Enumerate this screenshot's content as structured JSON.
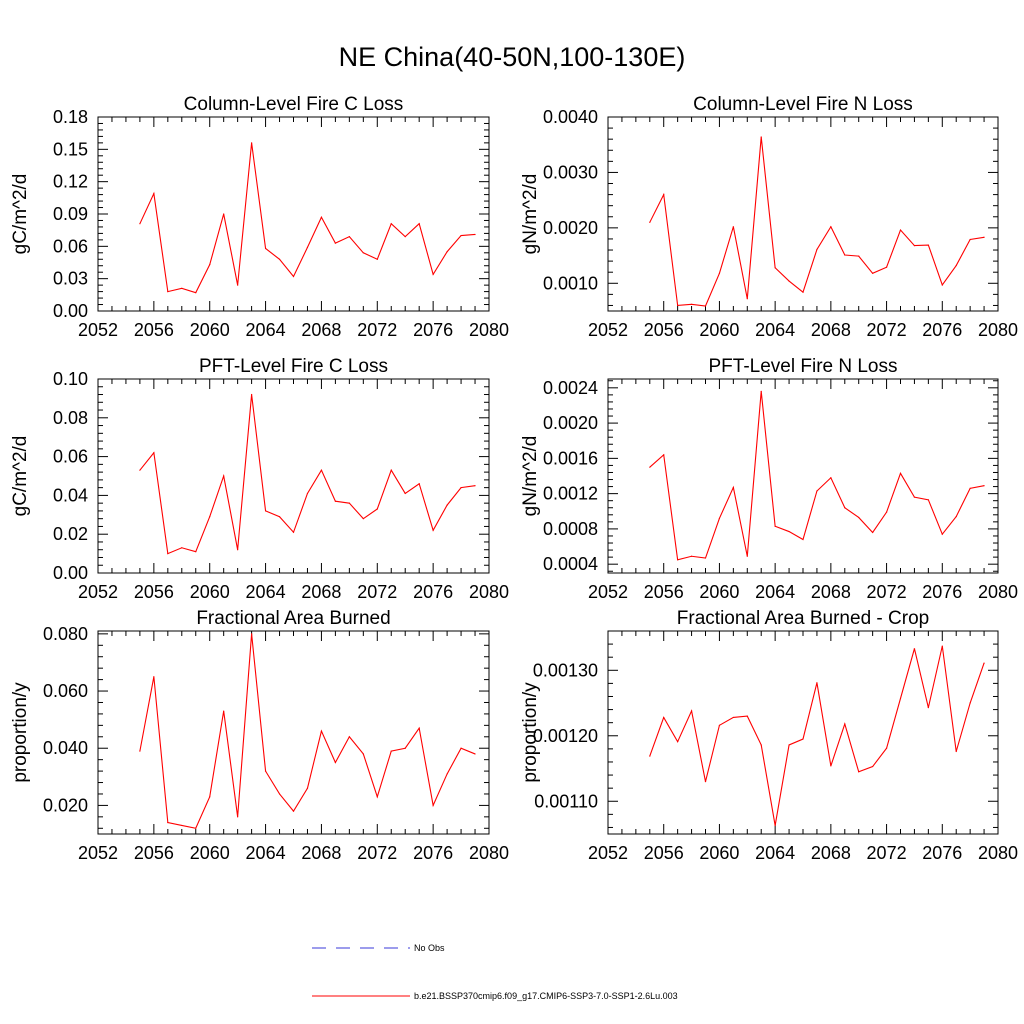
{
  "title": "NE China(40-50N,100-130E)",
  "colors": {
    "series": "#ff0000",
    "obs": "#3a3ad8",
    "axis": "#000000"
  },
  "legend": {
    "obs_label": "No Obs",
    "model_label": "b.e21.BSSP370cmip6.f09_g17.CMIP6-SSP3-7.0-SSP1-2.6Lu.003"
  },
  "chart_data": [
    {
      "type": "line",
      "title": "Column-Level Fire C Loss",
      "ylabel": "gC/m^2/d",
      "xlim": [
        2052,
        2080
      ],
      "ylim": [
        0,
        0.18
      ],
      "xticks": [
        "2052",
        "2056",
        "2060",
        "2064",
        "2068",
        "2072",
        "2076",
        "2080"
      ],
      "yticks": [
        "0.00",
        "0.03",
        "0.06",
        "0.09",
        "0.12",
        "0.15",
        "0.18"
      ],
      "x": [
        2055,
        2056,
        2057,
        2058,
        2059,
        2060,
        2061,
        2062,
        2063,
        2064,
        2065,
        2066,
        2067,
        2068,
        2069,
        2070,
        2071,
        2072,
        2073,
        2074,
        2075,
        2076,
        2077,
        2078,
        2079
      ],
      "series": [
        {
          "values": [
            0.081,
            0.109,
            0.018,
            0.021,
            0.017,
            0.043,
            0.09,
            0.024,
            0.156,
            0.058,
            0.048,
            0.032,
            0.059,
            0.087,
            0.063,
            0.069,
            0.054,
            0.048,
            0.081,
            0.069,
            0.081,
            0.034,
            0.055,
            0.07,
            0.071
          ]
        }
      ]
    },
    {
      "type": "line",
      "title": "Column-Level Fire N Loss",
      "ylabel": "gN/m^2/d",
      "xlim": [
        2052,
        2080
      ],
      "ylim": [
        0.0005,
        0.004
      ],
      "xticks": [
        "2052",
        "2056",
        "2060",
        "2064",
        "2068",
        "2072",
        "2076",
        "2080"
      ],
      "yticks": [
        "0.0010",
        "0.0020",
        "0.0030",
        "0.0040"
      ],
      "x": [
        2055,
        2056,
        2057,
        2058,
        2059,
        2060,
        2061,
        2062,
        2063,
        2064,
        2065,
        2066,
        2067,
        2068,
        2069,
        2070,
        2071,
        2072,
        2073,
        2074,
        2075,
        2076,
        2077,
        2078,
        2079
      ],
      "series": [
        {
          "values": [
            0.0021,
            0.0026,
            0.0006,
            0.00062,
            0.00059,
            0.00118,
            0.00202,
            0.00072,
            0.00364,
            0.00128,
            0.00104,
            0.00084,
            0.00161,
            0.00202,
            0.00151,
            0.00149,
            0.00118,
            0.00129,
            0.00196,
            0.00168,
            0.00169,
            0.00097,
            0.00132,
            0.00179,
            0.00183
          ]
        }
      ]
    },
    {
      "type": "line",
      "title": "PFT-Level Fire C Loss",
      "ylabel": "gC/m^2/d",
      "xlim": [
        2052,
        2080
      ],
      "ylim": [
        0,
        0.1
      ],
      "xticks": [
        "2052",
        "2056",
        "2060",
        "2064",
        "2068",
        "2072",
        "2076",
        "2080"
      ],
      "yticks": [
        "0.00",
        "0.02",
        "0.04",
        "0.06",
        "0.08",
        "0.10"
      ],
      "x": [
        2055,
        2056,
        2057,
        2058,
        2059,
        2060,
        2061,
        2062,
        2063,
        2064,
        2065,
        2066,
        2067,
        2068,
        2069,
        2070,
        2071,
        2072,
        2073,
        2074,
        2075,
        2076,
        2077,
        2078,
        2079
      ],
      "series": [
        {
          "values": [
            0.053,
            0.062,
            0.01,
            0.013,
            0.011,
            0.029,
            0.05,
            0.012,
            0.092,
            0.032,
            0.029,
            0.021,
            0.041,
            0.053,
            0.037,
            0.036,
            0.028,
            0.033,
            0.053,
            0.041,
            0.046,
            0.022,
            0.035,
            0.044,
            0.045
          ]
        }
      ]
    },
    {
      "type": "line",
      "title": "PFT-Level Fire N Loss",
      "ylabel": "gN/m^2/d",
      "xlim": [
        2052,
        2080
      ],
      "ylim": [
        0.0003,
        0.0025
      ],
      "xticks": [
        "2052",
        "2056",
        "2060",
        "2064",
        "2068",
        "2072",
        "2076",
        "2080"
      ],
      "yticks": [
        "0.0004",
        "0.0008",
        "0.0012",
        "0.0016",
        "0.0020",
        "0.0024"
      ],
      "x": [
        2055,
        2056,
        2057,
        2058,
        2059,
        2060,
        2061,
        2062,
        2063,
        2064,
        2065,
        2066,
        2067,
        2068,
        2069,
        2070,
        2071,
        2072,
        2073,
        2074,
        2075,
        2076,
        2077,
        2078,
        2079
      ],
      "series": [
        {
          "values": [
            0.0015,
            0.00164,
            0.00045,
            0.00049,
            0.00047,
            0.00092,
            0.00127,
            0.00049,
            0.00236,
            0.00083,
            0.00077,
            0.00068,
            0.00123,
            0.00138,
            0.00104,
            0.00093,
            0.00076,
            0.00099,
            0.00143,
            0.00116,
            0.00113,
            0.00074,
            0.00094,
            0.00126,
            0.00129
          ]
        }
      ]
    },
    {
      "type": "line",
      "title": "Fractional Area Burned",
      "ylabel": "proportion/y",
      "xlim": [
        2052,
        2080
      ],
      "ylim": [
        0.01,
        0.081
      ],
      "xticks": [
        "2052",
        "2056",
        "2060",
        "2064",
        "2068",
        "2072",
        "2076",
        "2080"
      ],
      "yticks": [
        "0.020",
        "0.040",
        "0.060",
        "0.080"
      ],
      "x": [
        2055,
        2056,
        2057,
        2058,
        2059,
        2060,
        2061,
        2062,
        2063,
        2064,
        2065,
        2066,
        2067,
        2068,
        2069,
        2070,
        2071,
        2072,
        2073,
        2074,
        2075,
        2076,
        2077,
        2078,
        2079
      ],
      "series": [
        {
          "values": [
            0.039,
            0.065,
            0.014,
            0.013,
            0.012,
            0.023,
            0.053,
            0.016,
            0.08,
            0.032,
            0.024,
            0.018,
            0.026,
            0.046,
            0.035,
            0.044,
            0.038,
            0.023,
            0.039,
            0.04,
            0.047,
            0.02,
            0.031,
            0.04,
            0.038
          ]
        }
      ]
    },
    {
      "type": "line",
      "title": "Fractional Area Burned - Crop",
      "ylabel": "proportion/y",
      "xlim": [
        2052,
        2080
      ],
      "ylim": [
        0.00105,
        0.00136
      ],
      "xticks": [
        "2052",
        "2056",
        "2060",
        "2064",
        "2068",
        "2072",
        "2076",
        "2080"
      ],
      "yticks": [
        "0.00110",
        "0.00120",
        "0.00130"
      ],
      "x": [
        2055,
        2056,
        2057,
        2058,
        2059,
        2060,
        2061,
        2062,
        2063,
        2064,
        2065,
        2066,
        2067,
        2068,
        2069,
        2070,
        2071,
        2072,
        2073,
        2074,
        2075,
        2076,
        2077,
        2078,
        2079
      ],
      "series": [
        {
          "values": [
            0.001169,
            0.001228,
            0.001191,
            0.001238,
            0.00113,
            0.001216,
            0.001228,
            0.00123,
            0.001186,
            0.001063,
            0.001186,
            0.001195,
            0.001281,
            0.001154,
            0.001218,
            0.001145,
            0.001153,
            0.001181,
            0.001257,
            0.001333,
            0.001243,
            0.001337,
            0.001176,
            0.00125,
            0.001311
          ]
        }
      ]
    }
  ]
}
